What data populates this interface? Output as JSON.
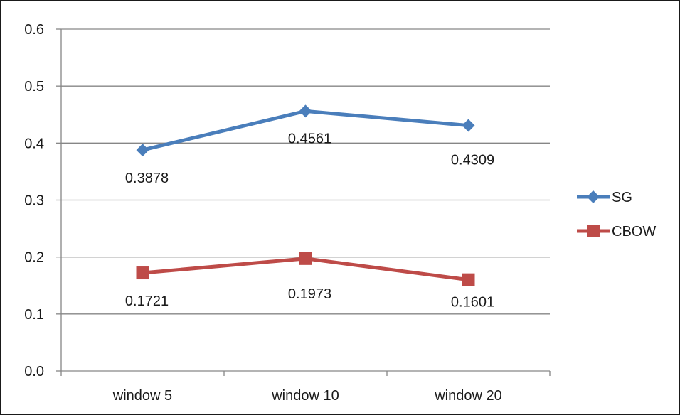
{
  "chart_data": {
    "type": "line",
    "categories": [
      "window 5",
      "window 10",
      "window 20"
    ],
    "series": [
      {
        "name": "SG",
        "values": [
          0.3878,
          0.4561,
          0.4309
        ],
        "labels": [
          "0.3878",
          "0.4561",
          "0.4309"
        ],
        "color": "#4A7EBB",
        "marker": "diamond"
      },
      {
        "name": "CBOW",
        "values": [
          0.1721,
          0.1973,
          0.1601
        ],
        "labels": [
          "0.1721",
          "0.1973",
          "0.1601"
        ],
        "color": "#BE4B48",
        "marker": "square"
      }
    ],
    "y_ticks": [
      "0.0",
      "0.1",
      "0.2",
      "0.3",
      "0.4",
      "0.5",
      "0.6"
    ],
    "ylim": [
      0,
      0.6
    ],
    "grid": true,
    "legend_position": "right",
    "title": "",
    "xlabel": "",
    "ylabel": ""
  }
}
